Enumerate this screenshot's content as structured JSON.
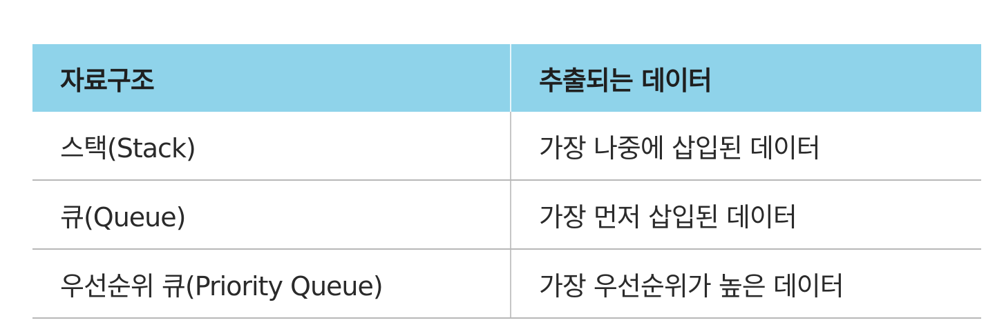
{
  "table": {
    "headers": [
      "자료구조",
      "추출되는 데이터"
    ],
    "rows": [
      [
        "스택(Stack)",
        "가장 나중에 삽입된 데이터"
      ],
      [
        "큐(Queue)",
        "가장 먼저 삽입된 데이터"
      ],
      [
        "우선순위 큐(Priority Queue)",
        "가장 우선순위가 높은 데이터"
      ]
    ]
  },
  "colors": {
    "header_background": "#8fd3ea",
    "row_divider": "#b8b8b8"
  }
}
